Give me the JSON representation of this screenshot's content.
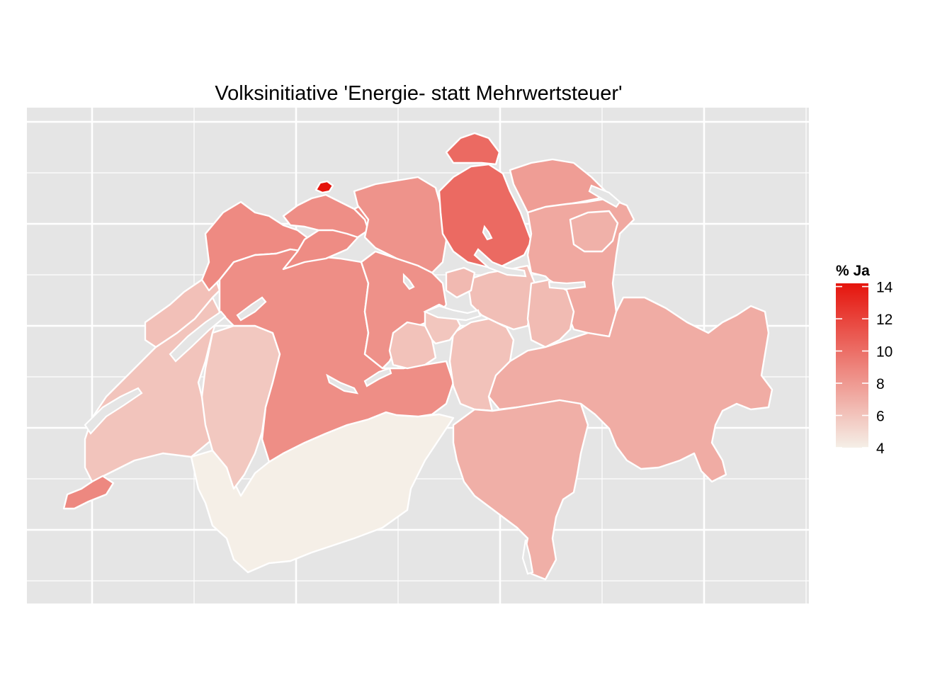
{
  "title": "Volksinitiative 'Energie- statt Mehrwertsteuer'",
  "legend": {
    "title": "% Ja",
    "ticks": [
      "14",
      "12",
      "10",
      "8",
      "6",
      "4"
    ],
    "min": 4,
    "max": 14.2,
    "low_color": "#f5efe7",
    "high_color": "#e5140c"
  },
  "colors": {
    "panel": "#e5e5e5",
    "grid": "#ffffff",
    "border": "#ffffff"
  },
  "regions": [
    {
      "name": "Basel-Stadt",
      "value": 14.2
    },
    {
      "name": "Zürich",
      "value": 10.2
    },
    {
      "name": "Schaffhausen",
      "value": 10.2
    },
    {
      "name": "Genève",
      "value": 8.8
    },
    {
      "name": "Bern",
      "value": 8.5
    },
    {
      "name": "Jura",
      "value": 8.7
    },
    {
      "name": "Solothurn",
      "value": 8.6
    },
    {
      "name": "Basel-Landschaft",
      "value": 8.5
    },
    {
      "name": "Aargau",
      "value": 8.3
    },
    {
      "name": "Luzern",
      "value": 8.4
    },
    {
      "name": "Thurgau",
      "value": 7.8
    },
    {
      "name": "St. Gallen",
      "value": 7.3
    },
    {
      "name": "Graubünden",
      "value": 7.1
    },
    {
      "name": "Ticino",
      "value": 7.0
    },
    {
      "name": "Appenzell",
      "value": 6.9
    },
    {
      "name": "Zug",
      "value": 6.5
    },
    {
      "name": "Schwyz",
      "value": 6.3
    },
    {
      "name": "Glarus",
      "value": 6.4
    },
    {
      "name": "Uri",
      "value": 6.1
    },
    {
      "name": "Obwalden",
      "value": 6.1
    },
    {
      "name": "Nidwalden",
      "value": 5.9
    },
    {
      "name": "Neuchâtel",
      "value": 6.2
    },
    {
      "name": "Vaud",
      "value": 6.0
    },
    {
      "name": "Fribourg",
      "value": 5.8
    },
    {
      "name": "Valais",
      "value": 4.0
    }
  ]
}
